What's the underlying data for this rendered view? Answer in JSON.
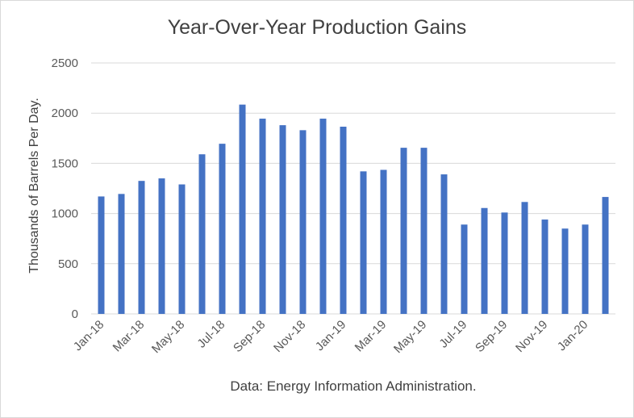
{
  "chart_data": {
    "type": "bar",
    "title": "Year-Over-Year Production Gains",
    "xlabel": "Data: Energy Information Administration.",
    "ylabel": "Thousands of Barrels Per Day.",
    "ylim": [
      0,
      2500
    ],
    "yticks": [
      0,
      500,
      1000,
      1500,
      2000,
      2500
    ],
    "grid": true,
    "categories": [
      "Jan-18",
      "Feb-18",
      "Mar-18",
      "Apr-18",
      "May-18",
      "Jun-18",
      "Jul-18",
      "Aug-18",
      "Sep-18",
      "Oct-18",
      "Nov-18",
      "Dec-18",
      "Jan-19",
      "Feb-19",
      "Mar-19",
      "Apr-19",
      "May-19",
      "Jun-19",
      "Jul-19",
      "Aug-19",
      "Sep-19",
      "Oct-19",
      "Nov-19",
      "Dec-19",
      "Jan-20",
      "Feb-20"
    ],
    "tick_labels": [
      "Jan-18",
      "",
      "Mar-18",
      "",
      "May-18",
      "",
      "Jul-18",
      "",
      "Sep-18",
      "",
      "Nov-18",
      "",
      "Jan-19",
      "",
      "Mar-19",
      "",
      "May-19",
      "",
      "Jul-19",
      "",
      "Sep-19",
      "",
      "Nov-19",
      "",
      "Jan-20",
      ""
    ],
    "values": [
      1170,
      1195,
      1325,
      1350,
      1290,
      1590,
      1695,
      2085,
      1945,
      1880,
      1830,
      1945,
      1865,
      1420,
      1435,
      1655,
      1655,
      1390,
      890,
      1055,
      1010,
      1115,
      940,
      850,
      890,
      1165
    ],
    "bar_color": "#4472c4"
  }
}
